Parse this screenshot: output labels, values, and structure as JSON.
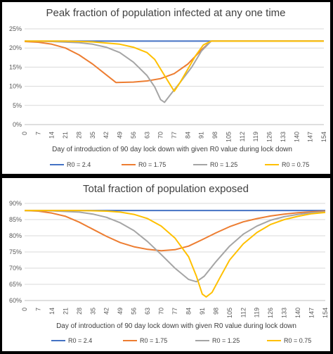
{
  "chart_data": [
    {
      "type": "line",
      "title": "Peak fraction of population infected at any one time",
      "xlabel": "Day of introduction of 90 day lock down with given R0 value during lock down",
      "ylabel": "",
      "xlim": [
        0,
        154
      ],
      "ylim": [
        0,
        25
      ],
      "y_ticks": [
        "0%",
        "5%",
        "10%",
        "15%",
        "20%",
        "25%"
      ],
      "y_tick_values": [
        0,
        5,
        10,
        15,
        20,
        25
      ],
      "x_ticks": [
        "0",
        "7",
        "14",
        "21",
        "28",
        "35",
        "42",
        "49",
        "56",
        "63",
        "70",
        "77",
        "84",
        "91",
        "98",
        "105",
        "112",
        "119",
        "126",
        "133",
        "140",
        "147",
        "154"
      ],
      "grid": "horizontal",
      "legend_position": "bottom",
      "series": [
        {
          "name": "R0 = 2.4",
          "color": "#4472C4",
          "points": [
            [
              0,
              21.8
            ],
            [
              154,
              21.8
            ]
          ]
        },
        {
          "name": "R0 = 1.75",
          "color": "#ED7D31",
          "points": [
            [
              0,
              21.7
            ],
            [
              7,
              21.5
            ],
            [
              14,
              21.0
            ],
            [
              21,
              20.0
            ],
            [
              28,
              18.2
            ],
            [
              35,
              15.8
            ],
            [
              42,
              13.0
            ],
            [
              47,
              11.0
            ],
            [
              56,
              11.1
            ],
            [
              63,
              11.4
            ],
            [
              70,
              12.0
            ],
            [
              77,
              13.3
            ],
            [
              84,
              15.8
            ],
            [
              91,
              19.5
            ],
            [
              96,
              21.8
            ],
            [
              154,
              21.8
            ]
          ]
        },
        {
          "name": "R0 = 1.25",
          "color": "#A5A5A5",
          "points": [
            [
              0,
              21.8
            ],
            [
              14,
              21.7
            ],
            [
              28,
              21.4
            ],
            [
              35,
              21.0
            ],
            [
              42,
              20.2
            ],
            [
              49,
              18.8
            ],
            [
              56,
              16.3
            ],
            [
              63,
              12.8
            ],
            [
              67,
              9.8
            ],
            [
              70,
              6.5
            ],
            [
              72,
              5.8
            ],
            [
              75,
              7.8
            ],
            [
              80,
              11.0
            ],
            [
              86,
              15.0
            ],
            [
              91,
              19.2
            ],
            [
              96,
              21.8
            ],
            [
              154,
              21.8
            ]
          ]
        },
        {
          "name": "R0 = 0.75",
          "color": "#FFC000",
          "points": [
            [
              0,
              21.8
            ],
            [
              21,
              21.8
            ],
            [
              35,
              21.6
            ],
            [
              49,
              21.0
            ],
            [
              56,
              20.2
            ],
            [
              63,
              18.8
            ],
            [
              67,
              17.0
            ],
            [
              70,
              14.5
            ],
            [
              73,
              12.0
            ],
            [
              77,
              8.7
            ],
            [
              80,
              11.0
            ],
            [
              84,
              14.5
            ],
            [
              88,
              18.0
            ],
            [
              92,
              20.8
            ],
            [
              96,
              21.8
            ],
            [
              154,
              21.8
            ]
          ]
        }
      ]
    },
    {
      "type": "line",
      "title": "Total fraction of population exposed",
      "xlabel": "Day of introduction of 90 day lock down with given R0 value during lock down",
      "ylabel": "",
      "xlim": [
        0,
        154
      ],
      "ylim": [
        60,
        90
      ],
      "y_ticks": [
        "60%",
        "65%",
        "70%",
        "75%",
        "80%",
        "85%",
        "90%"
      ],
      "y_tick_values": [
        60,
        65,
        70,
        75,
        80,
        85,
        90
      ],
      "x_ticks": [
        "0",
        "7",
        "14",
        "21",
        "28",
        "35",
        "42",
        "49",
        "56",
        "63",
        "70",
        "77",
        "84",
        "91",
        "98",
        "105",
        "112",
        "119",
        "126",
        "133",
        "140",
        "147",
        "154"
      ],
      "grid": "horizontal",
      "legend_position": "bottom",
      "series": [
        {
          "name": "R0 = 2.4",
          "color": "#4472C4",
          "points": [
            [
              0,
              87.8
            ],
            [
              154,
              87.8
            ]
          ]
        },
        {
          "name": "R0 = 1.75",
          "color": "#ED7D31",
          "points": [
            [
              0,
              87.8
            ],
            [
              7,
              87.6
            ],
            [
              14,
              87.0
            ],
            [
              21,
              86.0
            ],
            [
              28,
              84.2
            ],
            [
              35,
              82.0
            ],
            [
              42,
              79.8
            ],
            [
              49,
              77.9
            ],
            [
              56,
              76.6
            ],
            [
              63,
              75.8
            ],
            [
              70,
              75.4
            ],
            [
              77,
              75.7
            ],
            [
              84,
              76.8
            ],
            [
              91,
              78.8
            ],
            [
              98,
              80.9
            ],
            [
              105,
              82.8
            ],
            [
              112,
              84.3
            ],
            [
              119,
              85.3
            ],
            [
              126,
              86.1
            ],
            [
              133,
              86.7
            ],
            [
              140,
              87.1
            ],
            [
              147,
              87.4
            ],
            [
              154,
              87.6
            ]
          ]
        },
        {
          "name": "R0 = 1.25",
          "color": "#A5A5A5",
          "points": [
            [
              0,
              87.8
            ],
            [
              14,
              87.7
            ],
            [
              28,
              87.3
            ],
            [
              35,
              86.7
            ],
            [
              42,
              85.7
            ],
            [
              49,
              84.0
            ],
            [
              56,
              81.6
            ],
            [
              63,
              78.2
            ],
            [
              70,
              74.2
            ],
            [
              77,
              70.0
            ],
            [
              84,
              66.5
            ],
            [
              88,
              65.8
            ],
            [
              92,
              67.5
            ],
            [
              98,
              72.0
            ],
            [
              105,
              76.8
            ],
            [
              112,
              80.5
            ],
            [
              119,
              83.0
            ],
            [
              126,
              84.8
            ],
            [
              133,
              85.9
            ],
            [
              140,
              86.6
            ],
            [
              147,
              87.1
            ],
            [
              154,
              87.4
            ]
          ]
        },
        {
          "name": "R0 = 0.75",
          "color": "#FFC000",
          "points": [
            [
              0,
              87.8
            ],
            [
              28,
              87.8
            ],
            [
              42,
              87.6
            ],
            [
              49,
              87.3
            ],
            [
              56,
              86.6
            ],
            [
              63,
              85.3
            ],
            [
              70,
              83.0
            ],
            [
              77,
              79.3
            ],
            [
              84,
              73.5
            ],
            [
              88,
              67.5
            ],
            [
              91,
              62.0
            ],
            [
              93,
              61.1
            ],
            [
              96,
              62.5
            ],
            [
              100,
              67.0
            ],
            [
              105,
              72.5
            ],
            [
              112,
              77.5
            ],
            [
              119,
              81.0
            ],
            [
              126,
              83.5
            ],
            [
              133,
              85.0
            ],
            [
              140,
              86.0
            ],
            [
              147,
              86.8
            ],
            [
              154,
              87.2
            ]
          ]
        }
      ]
    }
  ]
}
